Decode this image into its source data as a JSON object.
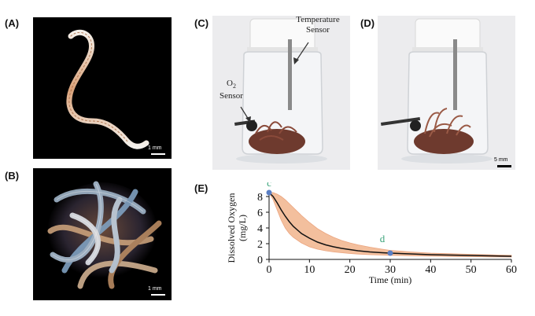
{
  "panels": {
    "a": {
      "label": "(A)",
      "scale": "1 mm"
    },
    "b": {
      "label": "(B)",
      "scale": "1 mm"
    },
    "c": {
      "label": "(C)",
      "temp_sensor": "Temperature Sensor",
      "o2_sensor_top": "O",
      "o2_sub": "2",
      "o2_sensor_bottom": "Sensor"
    },
    "d": {
      "label": "(D)",
      "scale": "5 mm"
    },
    "e": {
      "label": "(E)"
    }
  },
  "chart_data": {
    "type": "line",
    "xlabel": "Time (min)",
    "ylabel": "Dissolved Oxygen (mg/L)",
    "ylabel_line1": "Dissolved Oxygen",
    "ylabel_line2": "(mg/L)",
    "xlim": [
      0,
      60
    ],
    "ylim": [
      0,
      8
    ],
    "xticks": [
      0,
      10,
      20,
      30,
      40,
      50,
      60
    ],
    "yticks": [
      0,
      2,
      4,
      6,
      8
    ],
    "series": [
      {
        "x": [
          0,
          1,
          2,
          3,
          4,
          5,
          6,
          8,
          10,
          12,
          14,
          16,
          18,
          20,
          22,
          25,
          28,
          30,
          35,
          40,
          45,
          50,
          55,
          60
        ],
        "y": [
          8.5,
          8.0,
          7.2,
          6.3,
          5.5,
          4.8,
          4.2,
          3.3,
          2.7,
          2.2,
          1.85,
          1.6,
          1.4,
          1.25,
          1.1,
          0.95,
          0.85,
          0.8,
          0.7,
          0.6,
          0.55,
          0.5,
          0.45,
          0.4
        ],
        "y_upper": [
          8.5,
          8.5,
          8.3,
          8.0,
          7.6,
          7.1,
          6.6,
          5.6,
          4.7,
          3.9,
          3.3,
          2.8,
          2.4,
          2.1,
          1.85,
          1.55,
          1.3,
          1.15,
          0.95,
          0.8,
          0.72,
          0.65,
          0.58,
          0.52
        ],
        "y_lower": [
          8.5,
          7.6,
          6.3,
          5.0,
          4.0,
          3.3,
          2.8,
          2.1,
          1.6,
          1.3,
          1.1,
          0.95,
          0.85,
          0.75,
          0.68,
          0.6,
          0.55,
          0.52,
          0.47,
          0.42,
          0.38,
          0.35,
          0.32,
          0.3
        ]
      }
    ],
    "annotations": [
      {
        "text": "c",
        "x": 0,
        "y": 8.5
      },
      {
        "text": "d",
        "x": 30,
        "y": 0.8
      }
    ],
    "colors": {
      "line": "#111111",
      "band": "#f2b48c",
      "band_edge": "#e8966a",
      "marker": "#5b7fc4",
      "annot": "#3aa37a"
    }
  }
}
